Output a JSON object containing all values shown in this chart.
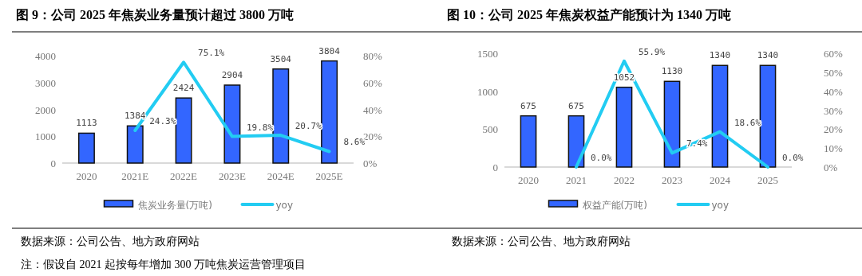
{
  "chart_data": [
    {
      "type": "bar",
      "title": "图 9：公司 2025 年焦炭业务量预计超过 3800 万吨",
      "categories": [
        "2020",
        "2021E",
        "2022E",
        "2023E",
        "2024E",
        "2025E"
      ],
      "series": [
        {
          "name": "焦炭业务量(万吨)",
          "color": "#3366ff",
          "values": [
            1113,
            1384,
            2424,
            2904,
            3504,
            3804
          ],
          "value_labels": [
            "1113",
            "1384",
            "2424",
            "2904",
            "3504",
            "3804"
          ]
        },
        {
          "name": "yoy",
          "type": "line",
          "axis": "y2",
          "color": "#22ccf2",
          "values": [
            null,
            24.3,
            75.1,
            19.8,
            20.7,
            8.6
          ],
          "value_labels": [
            null,
            "24.3%",
            "75.1%",
            "19.8%",
            "20.7%",
            "8.6%"
          ]
        }
      ],
      "ylim": [
        0,
        4000
      ],
      "yticks": [
        0,
        1000,
        2000,
        3000,
        4000
      ],
      "y2lim": [
        0,
        80
      ],
      "y2ticks": [
        {
          "value": 0,
          "label": "0%"
        },
        {
          "value": 20,
          "label": "20%"
        },
        {
          "value": 40,
          "label": "40%"
        },
        {
          "value": 60,
          "label": "60%"
        },
        {
          "value": 80,
          "label": "80%"
        }
      ],
      "legend": "bottom",
      "grid": false,
      "annotations": [
        "数据来源：公司公告、地方政府网站",
        "注：假设自 2021 起按每年增加 300 万吨焦炭运营管理项目"
      ]
    },
    {
      "type": "bar",
      "title": "图 10：公司 2025 年焦炭权益产能预计为 1340 万吨",
      "categories": [
        "2020",
        "2021",
        "2022",
        "2023",
        "2024",
        "2025"
      ],
      "series": [
        {
          "name": "权益产能(万吨)",
          "color": "#3366ff",
          "values": [
            675,
            675,
            1052,
            1130,
            1340,
            1340
          ],
          "value_labels": [
            "675",
            "675",
            "1052",
            "1130",
            "1340",
            "1340"
          ]
        },
        {
          "name": "yoy",
          "type": "line",
          "axis": "y2",
          "color": "#22ccf2",
          "values": [
            null,
            0.0,
            55.9,
            7.4,
            18.6,
            0.0
          ],
          "value_labels": [
            null,
            "0.0%",
            "55.9%",
            "7.4%",
            "18.6%",
            "0.0%"
          ]
        }
      ],
      "ylim": [
        0,
        1500
      ],
      "yticks": [
        0,
        500,
        1000,
        1500
      ],
      "y2lim": [
        0,
        60
      ],
      "y2ticks": [
        {
          "value": 0,
          "label": "0%"
        },
        {
          "value": 10,
          "label": "10%"
        },
        {
          "value": 20,
          "label": "20%"
        },
        {
          "value": 30,
          "label": "30%"
        },
        {
          "value": 40,
          "label": "40%"
        },
        {
          "value": 50,
          "label": "50%"
        },
        {
          "value": 60,
          "label": "60%"
        }
      ],
      "legend": "bottom",
      "grid": false,
      "annotations": [
        "数据来源：公司公告、地方政府网站"
      ]
    }
  ]
}
